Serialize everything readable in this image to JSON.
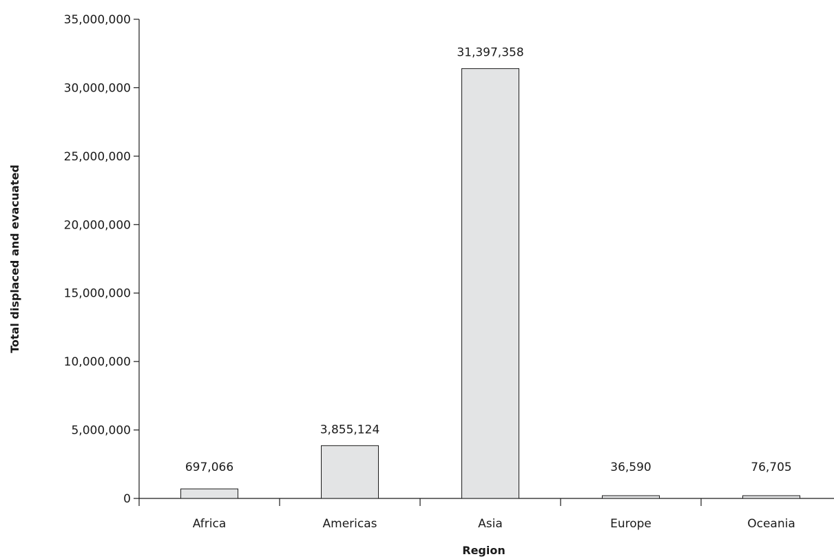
{
  "chart_data": {
    "type": "bar",
    "categories": [
      "Africa",
      "Americas",
      "Asia",
      "Europe",
      "Oceania"
    ],
    "values": [
      697066,
      3855124,
      31397358,
      36590,
      76705
    ],
    "data_labels": [
      "697,066",
      "3,855,124",
      "31,397,358",
      "36,590",
      "76,705"
    ],
    "xlabel": "Region",
    "ylabel": "Total displaced and evacuated",
    "ylim": [
      0,
      35000000
    ],
    "yticks": [
      0,
      5000000,
      10000000,
      15000000,
      20000000,
      25000000,
      30000000,
      35000000
    ],
    "ytick_labels": [
      "0",
      "5,000,000",
      "10,000,000",
      "15,000,000",
      "20,000,000",
      "25,000,000",
      "30,000,000",
      "35,000,000"
    ],
    "grid": false,
    "legend": "none",
    "bar_color": "#e3e4e5"
  }
}
